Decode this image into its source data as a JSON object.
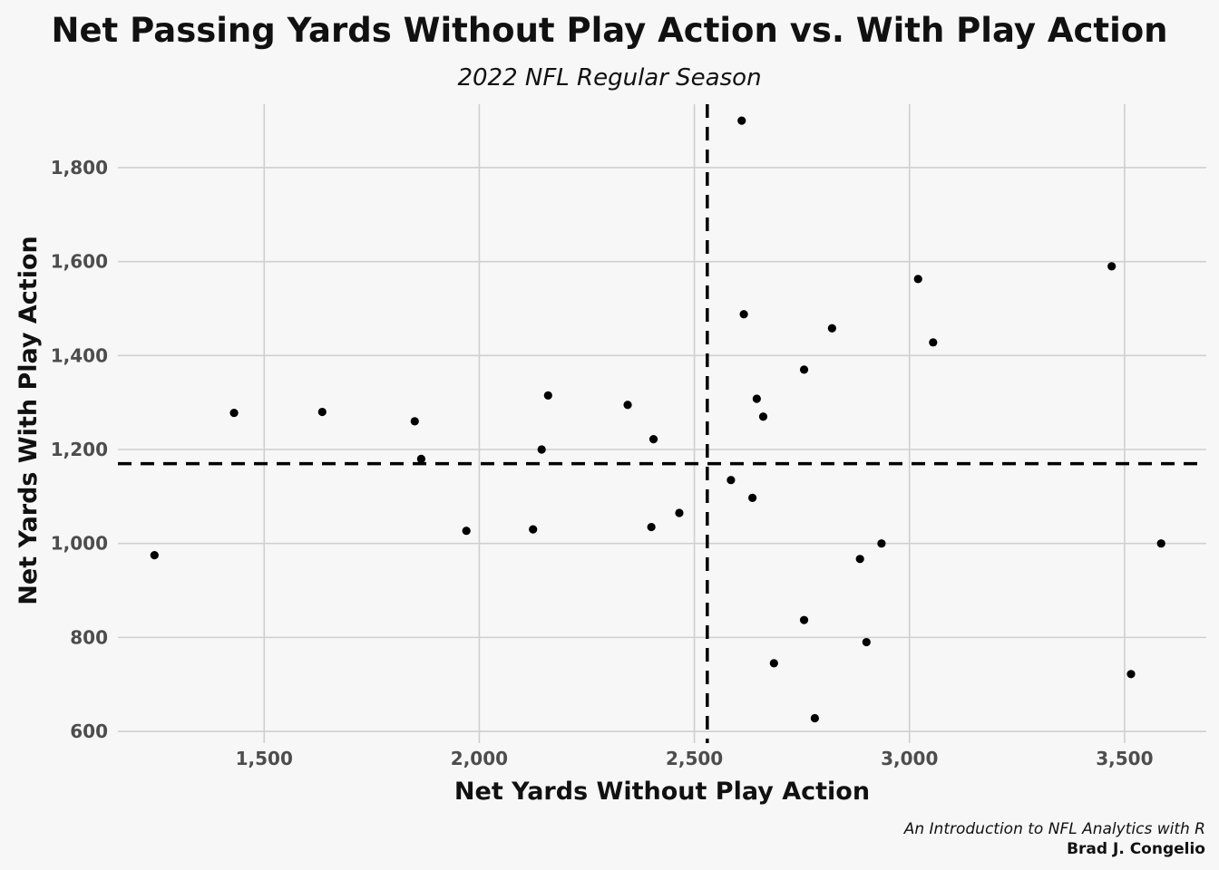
{
  "chart_data": {
    "type": "scatter",
    "title": "Net Passing Yards Without Play Action vs. With Play Action",
    "subtitle": "2022 NFL Regular Season",
    "xlabel": "Net Yards Without Play Action",
    "ylabel": "Net Yards With Play Action",
    "caption_line1": "An Introduction to NFL Analytics with R",
    "caption_line2": "Brad J. Congelio",
    "xlim": [
      1160,
      3690
    ],
    "ylim": [
      575,
      1935
    ],
    "x_ticks": [
      1500,
      2000,
      2500,
      3000,
      3500
    ],
    "x_tick_labels": [
      "1,500",
      "2,000",
      "2,500",
      "3,000",
      "3,500"
    ],
    "y_ticks": [
      600,
      800,
      1000,
      1200,
      1400,
      1600,
      1800
    ],
    "y_tick_labels": [
      "600",
      "800",
      "1,000",
      "1,200",
      "1,400",
      "1,600",
      "1,800"
    ],
    "grid": true,
    "legend": "none",
    "point_color": "#000000",
    "reference_lines": {
      "x_mean": 2530,
      "y_mean": 1170,
      "style": "dashed",
      "color": "#000000"
    },
    "points": [
      {
        "x": 1245,
        "y": 975
      },
      {
        "x": 1430,
        "y": 1278
      },
      {
        "x": 1635,
        "y": 1280
      },
      {
        "x": 1850,
        "y": 1260
      },
      {
        "x": 1865,
        "y": 1180
      },
      {
        "x": 1970,
        "y": 1027
      },
      {
        "x": 2125,
        "y": 1030
      },
      {
        "x": 2145,
        "y": 1200
      },
      {
        "x": 2160,
        "y": 1315
      },
      {
        "x": 2345,
        "y": 1295
      },
      {
        "x": 2400,
        "y": 1035
      },
      {
        "x": 2405,
        "y": 1222
      },
      {
        "x": 2465,
        "y": 1065
      },
      {
        "x": 2585,
        "y": 1135
      },
      {
        "x": 2610,
        "y": 1900
      },
      {
        "x": 2615,
        "y": 1488
      },
      {
        "x": 2635,
        "y": 1097
      },
      {
        "x": 2645,
        "y": 1308
      },
      {
        "x": 2660,
        "y": 1270
      },
      {
        "x": 2685,
        "y": 745
      },
      {
        "x": 2755,
        "y": 1370
      },
      {
        "x": 2755,
        "y": 837
      },
      {
        "x": 2780,
        "y": 628
      },
      {
        "x": 2820,
        "y": 1458
      },
      {
        "x": 2885,
        "y": 967
      },
      {
        "x": 2900,
        "y": 790
      },
      {
        "x": 2935,
        "y": 1000
      },
      {
        "x": 3020,
        "y": 1563
      },
      {
        "x": 3055,
        "y": 1428
      },
      {
        "x": 3470,
        "y": 1590
      },
      {
        "x": 3515,
        "y": 722
      },
      {
        "x": 3585,
        "y": 1000
      }
    ]
  }
}
